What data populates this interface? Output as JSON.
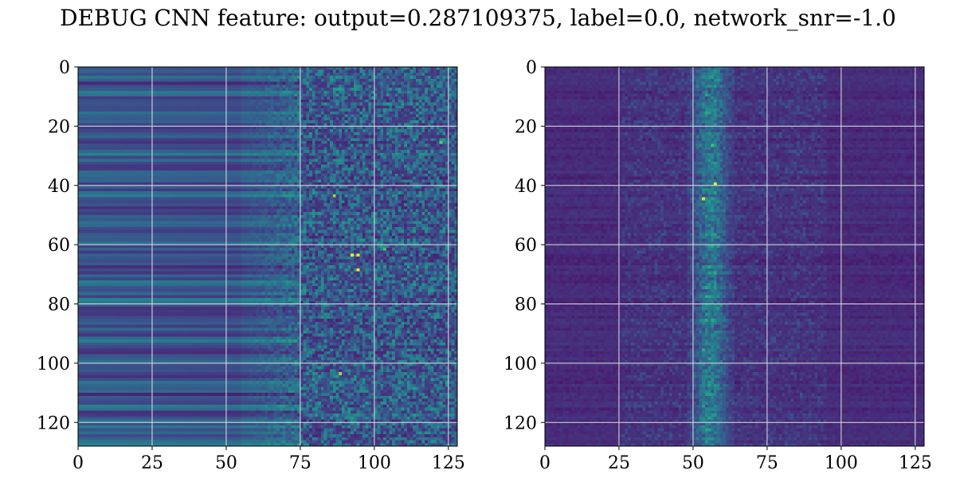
{
  "figure": {
    "title": "DEBUG CNN feature: output=0.287109375, label=0.0, network_snr=-1.0"
  },
  "colormap": {
    "name": "viridis",
    "stops": [
      "#440154",
      "#482878",
      "#3e4989",
      "#31688e",
      "#26828e",
      "#1f9e89",
      "#35b779",
      "#6ece58",
      "#b5de2b",
      "#fde725"
    ]
  },
  "chart_data": [
    {
      "type": "heatmap",
      "title": "",
      "xlabel": "",
      "ylabel": "",
      "shape": [
        128,
        128
      ],
      "xlim": [
        0,
        128
      ],
      "ylim": [
        128,
        0
      ],
      "xticks": [
        0,
        25,
        50,
        75,
        100,
        125
      ],
      "yticks": [
        0,
        20,
        40,
        60,
        80,
        100,
        120
      ],
      "xtick_labels": [
        "0",
        "25",
        "50",
        "75",
        "100",
        "125"
      ],
      "ytick_labels": [
        "0",
        "20",
        "40",
        "60",
        "80",
        "100",
        "120"
      ],
      "grid": true,
      "pattern": "horizontal bands across columns 0-70 with row-varying intensity (~0.15-0.40); noisy speckle across columns 75-127",
      "hotspots": [
        {
          "row": 63,
          "col": 92,
          "value": 1.0
        },
        {
          "row": 63,
          "col": 94,
          "value": 0.97
        },
        {
          "row": 68,
          "col": 94,
          "value": 1.0
        },
        {
          "row": 43,
          "col": 86,
          "value": 0.85
        },
        {
          "row": 103,
          "col": 88,
          "value": 0.85
        },
        {
          "row": 25,
          "col": 122,
          "value": 0.75
        },
        {
          "row": 61,
          "col": 103,
          "value": 0.7
        }
      ]
    },
    {
      "type": "heatmap",
      "title": "",
      "xlabel": "",
      "ylabel": "",
      "shape": [
        128,
        128
      ],
      "xlim": [
        0,
        128
      ],
      "ylim": [
        128,
        0
      ],
      "xticks": [
        0,
        25,
        50,
        75,
        100,
        125
      ],
      "yticks": [
        0,
        20,
        40,
        60,
        80,
        100,
        120
      ],
      "xtick_labels": [
        "0",
        "25",
        "50",
        "75",
        "100",
        "125"
      ],
      "ytick_labels": [
        "0",
        "20",
        "40",
        "60",
        "80",
        "100",
        "120"
      ],
      "grid": true,
      "pattern": "dark background (~0.05-0.15) with bright vertical band of activity centered near column 55 (columns ~50-62) and weaker texture to column 90",
      "hotspots": [
        {
          "row": 39,
          "col": 57,
          "value": 1.0
        },
        {
          "row": 44,
          "col": 53,
          "value": 0.95
        },
        {
          "row": 26,
          "col": 56,
          "value": 0.7
        },
        {
          "row": 15,
          "col": 54,
          "value": 0.6
        },
        {
          "row": 95,
          "col": 53,
          "value": 0.6
        }
      ]
    }
  ]
}
